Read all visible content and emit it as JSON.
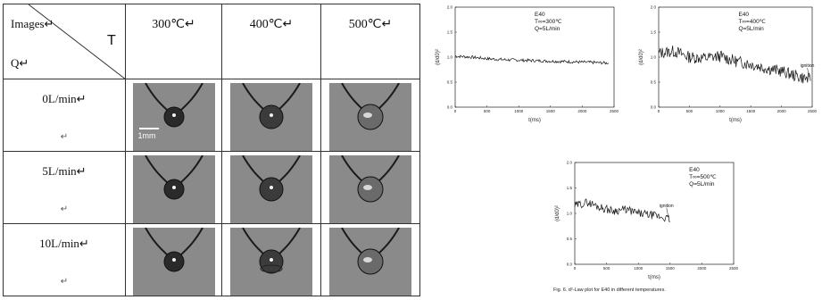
{
  "table": {
    "header_images": "Images↵",
    "header_t": "T",
    "header_q": "Q↵",
    "temperatures": [
      "300℃↵",
      "400℃↵",
      "500℃↵"
    ],
    "rows": [
      {
        "label": "0L/min↵",
        "mark": "↵"
      },
      {
        "label": "5L/min↵",
        "mark": "↵"
      },
      {
        "label": "10L/min↵",
        "mark": "↵"
      }
    ],
    "scale_label": "1mm"
  },
  "chart_data": [
    {
      "type": "line",
      "title": "E40",
      "annotations": [
        "T∞=300℃",
        "Q=5L/min"
      ],
      "xlabel": "t(ms)",
      "ylabel": "(d/d0)²",
      "xlim": [
        0,
        2500
      ],
      "ylim": [
        0.0,
        2.0
      ],
      "xticks": [
        "0",
        "500",
        "1000",
        "1500",
        "2000",
        "2500"
      ],
      "yticks": [
        "0.0",
        "0.5",
        "1.0",
        "1.5",
        "2.0"
      ],
      "series": [
        {
          "x": [
            0,
            250,
            500,
            750,
            1000,
            1250,
            1500,
            1750,
            2000,
            2250,
            2420
          ],
          "values": [
            1.02,
            1.0,
            0.97,
            0.95,
            0.94,
            0.93,
            0.92,
            0.91,
            0.9,
            0.89,
            0.88
          ],
          "noise": 0.03
        }
      ]
    },
    {
      "type": "line",
      "title": "E40",
      "annotations": [
        "T∞=400℃",
        "Q=5L/min"
      ],
      "marker_label": "ignition",
      "xlabel": "t(ms)",
      "ylabel": "(d/d0)²",
      "xlim": [
        0,
        2500
      ],
      "ylim": [
        0.0,
        2.0
      ],
      "xticks": [
        "0",
        "500",
        "1000",
        "1500",
        "2000",
        "2500"
      ],
      "yticks": [
        "0.0",
        "0.5",
        "1.0",
        "1.5",
        "2.0"
      ],
      "series": [
        {
          "x": [
            0,
            250,
            500,
            750,
            1000,
            1250,
            1500,
            1750,
            2000,
            2250,
            2480
          ],
          "values": [
            1.08,
            1.12,
            1.0,
            0.98,
            1.02,
            0.92,
            0.86,
            0.78,
            0.72,
            0.62,
            0.55
          ],
          "noise": 0.12
        }
      ]
    },
    {
      "type": "line",
      "title": "E40",
      "annotations": [
        "T∞=500℃",
        "Q=5L/min"
      ],
      "marker_label": "ignition",
      "xlabel": "t(ms)",
      "ylabel": "(d/d0)²",
      "xlim": [
        0,
        2500
      ],
      "ylim": [
        0.0,
        2.0
      ],
      "xticks": [
        "0",
        "500",
        "1000",
        "1500",
        "2000",
        "2500"
      ],
      "yticks": [
        "0.0",
        "0.5",
        "1.0",
        "1.5",
        "2.0"
      ],
      "series": [
        {
          "x": [
            0,
            200,
            400,
            600,
            800,
            1000,
            1200,
            1400,
            1500
          ],
          "values": [
            1.15,
            1.22,
            1.12,
            1.05,
            1.08,
            1.0,
            0.97,
            0.92,
            0.88
          ],
          "noise": 0.08
        }
      ]
    }
  ],
  "caption": "Fig. 6. d²-Law plot for E40 in different temperatures."
}
